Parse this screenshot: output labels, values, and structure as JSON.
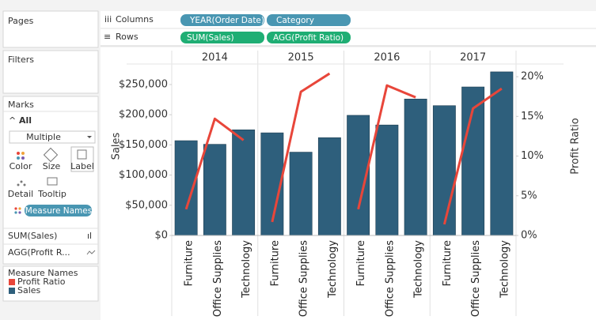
{
  "ui": {
    "pages": "Pages",
    "columns_label": "Columns",
    "columns_pills": [
      "YEAR(Order Date)",
      "Category"
    ],
    "rows_label": "Rows",
    "rows_pills": [
      "SUM(Sales)",
      "AGG(Profit Ratio)"
    ],
    "filters": "Filters",
    "marks": {
      "title": "Marks",
      "all": "All",
      "mark_type": "Multiple",
      "buttons": [
        "Color",
        "Size",
        "Label",
        "Detail",
        "Tooltip"
      ],
      "pill": "Measure Names",
      "cards": [
        "SUM(Sales)",
        "AGG(Profit R..."
      ]
    },
    "legend_title": "Measure Names"
  },
  "chart_data": {
    "type": "bar_line",
    "y_label": "Sales",
    "y2_label": "Profit Ratio",
    "years": [
      "2014",
      "2015",
      "2016",
      "2017"
    ],
    "categories": [
      "Furniture",
      "Office Supplies",
      "Technology",
      "Furniture",
      "Office Supplies",
      "Technology",
      "Furniture",
      "Office Supplies",
      "Technology",
      "Furniture",
      "Office Supplies",
      "Technology"
    ],
    "series": [
      {
        "name": "Sales",
        "type": "bar",
        "color": "#2e5f7c",
        "values": [
          157000,
          151000,
          175000,
          170000,
          138000,
          162000,
          199000,
          183000,
          226000,
          215000,
          246000,
          271000
        ]
      },
      {
        "name": "Profit Ratio",
        "type": "line",
        "axis": "y2",
        "color": "#e8463a",
        "values": [
          3.3,
          14.7,
          12.0,
          1.7,
          18.1,
          20.4,
          3.3,
          18.9,
          17.4,
          1.4,
          16.0,
          18.5
        ]
      }
    ],
    "ylim": [
      0,
      282700
    ],
    "yticks": [
      {
        "value": 0,
        "label": "$0"
      },
      {
        "value": 50000,
        "label": "$50,000"
      },
      {
        "value": 100000,
        "label": "$100,000"
      },
      {
        "value": 150000,
        "label": "$150,000"
      },
      {
        "value": 200000,
        "label": "$200,000"
      },
      {
        "value": 250000,
        "label": "$250,000"
      }
    ],
    "y2lim": [
      0,
      21.5
    ],
    "y2ticks": [
      {
        "value": 0,
        "label": "0%"
      },
      {
        "value": 5,
        "label": "5%"
      },
      {
        "value": 10,
        "label": "10%"
      },
      {
        "value": 15,
        "label": "15%"
      },
      {
        "value": 20,
        "label": "20%"
      }
    ]
  }
}
